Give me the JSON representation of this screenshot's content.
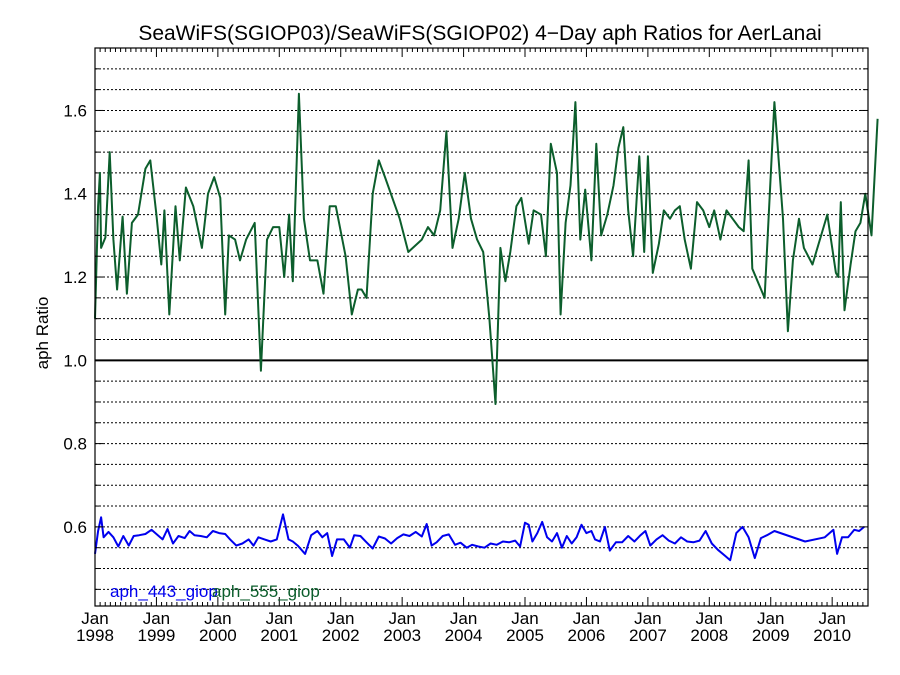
{
  "chart_data": {
    "type": "line",
    "title": "SeaWiFS(SGIOP03)/SeaWiFS(SGIOP02) 4−Day aph Ratios for AerLanai",
    "xlabel": "",
    "ylabel": "aph Ratio",
    "xlim": [
      "1998-01-01",
      "2010-08-01"
    ],
    "ylim": [
      0.41,
      1.75
    ],
    "yticks": [
      {
        "value": 0.6,
        "label": "0.6"
      },
      {
        "value": 0.8,
        "label": "0.8"
      },
      {
        "value": 1.0,
        "label": "1.0"
      },
      {
        "value": 1.2,
        "label": "1.2"
      },
      {
        "value": 1.4,
        "label": "1.4"
      },
      {
        "value": 1.6,
        "label": "1.6"
      }
    ],
    "xticks": [
      {
        "year": 1998,
        "month": "Jan",
        "label": "1998"
      },
      {
        "year": 1999,
        "month": "Jan",
        "label": "1999"
      },
      {
        "year": 2000,
        "month": "Jan",
        "label": "2000"
      },
      {
        "year": 2001,
        "month": "Jan",
        "label": "2001"
      },
      {
        "year": 2002,
        "month": "Jan",
        "label": "2002"
      },
      {
        "year": 2003,
        "month": "Jan",
        "label": "2003"
      },
      {
        "year": 2004,
        "month": "Jan",
        "label": "2004"
      },
      {
        "year": 2005,
        "month": "Jan",
        "label": "2005"
      },
      {
        "year": 2006,
        "month": "Jan",
        "label": "2006"
      },
      {
        "year": 2007,
        "month": "Jan",
        "label": "2007"
      },
      {
        "year": 2008,
        "month": "Jan",
        "label": "2008"
      },
      {
        "year": 2009,
        "month": "Jan",
        "label": "2009"
      },
      {
        "year": 2010,
        "month": "Jan",
        "label": "2010"
      }
    ],
    "reference_line": 1.0,
    "grid": "horizontal dotted",
    "legend": {
      "placement": "bottom-left"
    },
    "series": [
      {
        "name": "aph_443_giop",
        "color": "#0000ee",
        "points": [
          [
            1998.0,
            0.535
          ],
          [
            1998.05,
            0.59
          ],
          [
            1998.1,
            0.623
          ],
          [
            1998.14,
            0.575
          ],
          [
            1998.22,
            0.588
          ],
          [
            1998.3,
            0.575
          ],
          [
            1998.38,
            0.553
          ],
          [
            1998.46,
            0.578
          ],
          [
            1998.55,
            0.555
          ],
          [
            1998.63,
            0.578
          ],
          [
            1998.72,
            0.58
          ],
          [
            1998.82,
            0.583
          ],
          [
            1998.92,
            0.593
          ],
          [
            1999.0,
            0.583
          ],
          [
            1999.1,
            0.57
          ],
          [
            1999.18,
            0.595
          ],
          [
            1999.27,
            0.56
          ],
          [
            1999.36,
            0.578
          ],
          [
            1999.46,
            0.573
          ],
          [
            1999.54,
            0.59
          ],
          [
            1999.62,
            0.58
          ],
          [
            1999.72,
            0.578
          ],
          [
            1999.82,
            0.575
          ],
          [
            1999.92,
            0.59
          ],
          [
            2000.02,
            0.585
          ],
          [
            2000.12,
            0.583
          ],
          [
            2000.2,
            0.57
          ],
          [
            2000.3,
            0.555
          ],
          [
            2000.4,
            0.56
          ],
          [
            2000.5,
            0.57
          ],
          [
            2000.58,
            0.555
          ],
          [
            2000.66,
            0.575
          ],
          [
            2000.76,
            0.57
          ],
          [
            2000.86,
            0.565
          ],
          [
            2000.96,
            0.57
          ],
          [
            2001.06,
            0.63
          ],
          [
            2001.15,
            0.57
          ],
          [
            2001.22,
            0.565
          ],
          [
            2001.3,
            0.555
          ],
          [
            2001.42,
            0.535
          ],
          [
            2001.52,
            0.58
          ],
          [
            2001.62,
            0.59
          ],
          [
            2001.7,
            0.575
          ],
          [
            2001.78,
            0.585
          ],
          [
            2001.86,
            0.53
          ],
          [
            2001.94,
            0.57
          ],
          [
            2002.05,
            0.57
          ],
          [
            2002.15,
            0.55
          ],
          [
            2002.22,
            0.58
          ],
          [
            2002.32,
            0.578
          ],
          [
            2002.42,
            0.563
          ],
          [
            2002.52,
            0.548
          ],
          [
            2002.62,
            0.577
          ],
          [
            2002.72,
            0.572
          ],
          [
            2002.82,
            0.56
          ],
          [
            2002.92,
            0.573
          ],
          [
            2003.02,
            0.582
          ],
          [
            2003.12,
            0.578
          ],
          [
            2003.22,
            0.588
          ],
          [
            2003.32,
            0.577
          ],
          [
            2003.4,
            0.607
          ],
          [
            2003.48,
            0.555
          ],
          [
            2003.56,
            0.563
          ],
          [
            2003.66,
            0.578
          ],
          [
            2003.76,
            0.582
          ],
          [
            2003.86,
            0.557
          ],
          [
            2003.95,
            0.562
          ],
          [
            2004.05,
            0.55
          ],
          [
            2004.14,
            0.557
          ],
          [
            2004.24,
            0.553
          ],
          [
            2004.34,
            0.55
          ],
          [
            2004.44,
            0.56
          ],
          [
            2004.54,
            0.557
          ],
          [
            2004.64,
            0.565
          ],
          [
            2004.74,
            0.563
          ],
          [
            2004.84,
            0.567
          ],
          [
            2004.92,
            0.553
          ],
          [
            2005.0,
            0.61
          ],
          [
            2005.06,
            0.605
          ],
          [
            2005.12,
            0.565
          ],
          [
            2005.2,
            0.585
          ],
          [
            2005.28,
            0.612
          ],
          [
            2005.36,
            0.575
          ],
          [
            2005.44,
            0.565
          ],
          [
            2005.52,
            0.585
          ],
          [
            2005.6,
            0.55
          ],
          [
            2005.68,
            0.578
          ],
          [
            2005.76,
            0.56
          ],
          [
            2005.84,
            0.575
          ],
          [
            2005.92,
            0.605
          ],
          [
            2006.0,
            0.585
          ],
          [
            2006.08,
            0.59
          ],
          [
            2006.14,
            0.57
          ],
          [
            2006.22,
            0.565
          ],
          [
            2006.3,
            0.6
          ],
          [
            2006.38,
            0.543
          ],
          [
            2006.48,
            0.563
          ],
          [
            2006.58,
            0.563
          ],
          [
            2006.68,
            0.578
          ],
          [
            2006.78,
            0.565
          ],
          [
            2006.88,
            0.58
          ],
          [
            2006.96,
            0.59
          ],
          [
            2007.04,
            0.555
          ],
          [
            2007.14,
            0.57
          ],
          [
            2007.24,
            0.58
          ],
          [
            2007.34,
            0.567
          ],
          [
            2007.44,
            0.56
          ],
          [
            2007.54,
            0.575
          ],
          [
            2007.64,
            0.565
          ],
          [
            2007.74,
            0.563
          ],
          [
            2007.84,
            0.567
          ],
          [
            2007.94,
            0.59
          ],
          [
            2008.04,
            0.56
          ],
          [
            2008.14,
            0.545
          ],
          [
            2008.26,
            0.53
          ],
          [
            2008.34,
            0.52
          ],
          [
            2008.44,
            0.585
          ],
          [
            2008.54,
            0.6
          ],
          [
            2008.64,
            0.575
          ],
          [
            2008.74,
            0.525
          ],
          [
            2008.84,
            0.573
          ],
          [
            2008.94,
            0.58
          ],
          [
            2009.06,
            0.59
          ],
          [
            2009.56,
            0.565
          ],
          [
            2009.88,
            0.575
          ],
          [
            2010.02,
            0.593
          ],
          [
            2010.08,
            0.535
          ],
          [
            2010.16,
            0.575
          ],
          [
            2010.26,
            0.575
          ],
          [
            2010.36,
            0.593
          ],
          [
            2010.44,
            0.59
          ],
          [
            2010.52,
            0.6
          ]
        ]
      },
      {
        "name": "aph_555_giop",
        "color": "#0c5e2c",
        "points": [
          [
            1998.0,
            1.1
          ],
          [
            1998.05,
            1.37
          ],
          [
            1998.08,
            1.45
          ],
          [
            1998.1,
            1.27
          ],
          [
            1998.17,
            1.295
          ],
          [
            1998.24,
            1.5
          ],
          [
            1998.3,
            1.29
          ],
          [
            1998.36,
            1.17
          ],
          [
            1998.45,
            1.345
          ],
          [
            1998.52,
            1.16
          ],
          [
            1998.6,
            1.33
          ],
          [
            1998.7,
            1.35
          ],
          [
            1998.82,
            1.46
          ],
          [
            1998.9,
            1.48
          ],
          [
            1999.0,
            1.35
          ],
          [
            1999.08,
            1.23
          ],
          [
            1999.13,
            1.36
          ],
          [
            1999.21,
            1.11
          ],
          [
            1999.31,
            1.37
          ],
          [
            1999.38,
            1.24
          ],
          [
            1999.48,
            1.415
          ],
          [
            1999.6,
            1.37
          ],
          [
            1999.74,
            1.27
          ],
          [
            1999.84,
            1.4
          ],
          [
            1999.94,
            1.44
          ],
          [
            2000.04,
            1.39
          ],
          [
            2000.12,
            1.11
          ],
          [
            2000.18,
            1.3
          ],
          [
            2000.28,
            1.29
          ],
          [
            2000.36,
            1.24
          ],
          [
            2000.46,
            1.29
          ],
          [
            2000.6,
            1.33
          ],
          [
            2000.7,
            0.975
          ],
          [
            2000.8,
            1.29
          ],
          [
            2000.9,
            1.32
          ],
          [
            2001.0,
            1.32
          ],
          [
            2001.08,
            1.2
          ],
          [
            2001.16,
            1.35
          ],
          [
            2001.22,
            1.19
          ],
          [
            2001.32,
            1.64
          ],
          [
            2001.4,
            1.34
          ],
          [
            2001.5,
            1.24
          ],
          [
            2001.62,
            1.24
          ],
          [
            2001.72,
            1.16
          ],
          [
            2001.82,
            1.37
          ],
          [
            2001.92,
            1.37
          ],
          [
            2002.08,
            1.25
          ],
          [
            2002.18,
            1.11
          ],
          [
            2002.28,
            1.17
          ],
          [
            2002.34,
            1.17
          ],
          [
            2002.42,
            1.15
          ],
          [
            2002.52,
            1.4
          ],
          [
            2002.62,
            1.48
          ],
          [
            2002.72,
            1.44
          ],
          [
            2002.96,
            1.34
          ],
          [
            2003.1,
            1.26
          ],
          [
            2003.32,
            1.29
          ],
          [
            2003.42,
            1.32
          ],
          [
            2003.52,
            1.3
          ],
          [
            2003.62,
            1.36
          ],
          [
            2003.72,
            1.55
          ],
          [
            2003.82,
            1.27
          ],
          [
            2003.92,
            1.34
          ],
          [
            2004.02,
            1.45
          ],
          [
            2004.12,
            1.34
          ],
          [
            2004.22,
            1.29
          ],
          [
            2004.32,
            1.26
          ],
          [
            2004.42,
            1.1
          ],
          [
            2004.52,
            0.895
          ],
          [
            2004.6,
            1.27
          ],
          [
            2004.68,
            1.19
          ],
          [
            2004.76,
            1.26
          ],
          [
            2004.86,
            1.37
          ],
          [
            2004.94,
            1.39
          ],
          [
            2005.06,
            1.28
          ],
          [
            2005.14,
            1.36
          ],
          [
            2005.26,
            1.35
          ],
          [
            2005.34,
            1.25
          ],
          [
            2005.42,
            1.52
          ],
          [
            2005.52,
            1.45
          ],
          [
            2005.58,
            1.11
          ],
          [
            2005.66,
            1.33
          ],
          [
            2005.74,
            1.42
          ],
          [
            2005.82,
            1.62
          ],
          [
            2005.9,
            1.29
          ],
          [
            2005.98,
            1.41
          ],
          [
            2006.08,
            1.24
          ],
          [
            2006.16,
            1.52
          ],
          [
            2006.24,
            1.3
          ],
          [
            2006.34,
            1.35
          ],
          [
            2006.44,
            1.42
          ],
          [
            2006.52,
            1.51
          ],
          [
            2006.6,
            1.56
          ],
          [
            2006.68,
            1.36
          ],
          [
            2006.76,
            1.25
          ],
          [
            2006.86,
            1.49
          ],
          [
            2006.94,
            1.26
          ],
          [
            2007.0,
            1.49
          ],
          [
            2007.08,
            1.21
          ],
          [
            2007.18,
            1.28
          ],
          [
            2007.26,
            1.36
          ],
          [
            2007.36,
            1.34
          ],
          [
            2007.44,
            1.36
          ],
          [
            2007.52,
            1.37
          ],
          [
            2007.6,
            1.29
          ],
          [
            2007.7,
            1.22
          ],
          [
            2007.8,
            1.38
          ],
          [
            2007.9,
            1.36
          ],
          [
            2008.0,
            1.32
          ],
          [
            2008.08,
            1.36
          ],
          [
            2008.18,
            1.29
          ],
          [
            2008.28,
            1.36
          ],
          [
            2008.38,
            1.34
          ],
          [
            2008.48,
            1.32
          ],
          [
            2008.56,
            1.31
          ],
          [
            2008.64,
            1.48
          ],
          [
            2008.7,
            1.22
          ],
          [
            2008.9,
            1.15
          ],
          [
            2009.06,
            1.62
          ],
          [
            2009.2,
            1.34
          ],
          [
            2009.28,
            1.07
          ],
          [
            2009.36,
            1.24
          ],
          [
            2009.46,
            1.34
          ],
          [
            2009.54,
            1.27
          ],
          [
            2009.68,
            1.23
          ],
          [
            2009.92,
            1.35
          ],
          [
            2010.06,
            1.21
          ],
          [
            2010.1,
            1.2
          ],
          [
            2010.14,
            1.38
          ],
          [
            2010.2,
            1.12
          ],
          [
            2010.3,
            1.23
          ],
          [
            2010.38,
            1.31
          ],
          [
            2010.46,
            1.33
          ],
          [
            2010.54,
            1.4
          ],
          [
            2010.64,
            1.3
          ],
          [
            2010.74,
            1.58
          ]
        ]
      }
    ]
  }
}
